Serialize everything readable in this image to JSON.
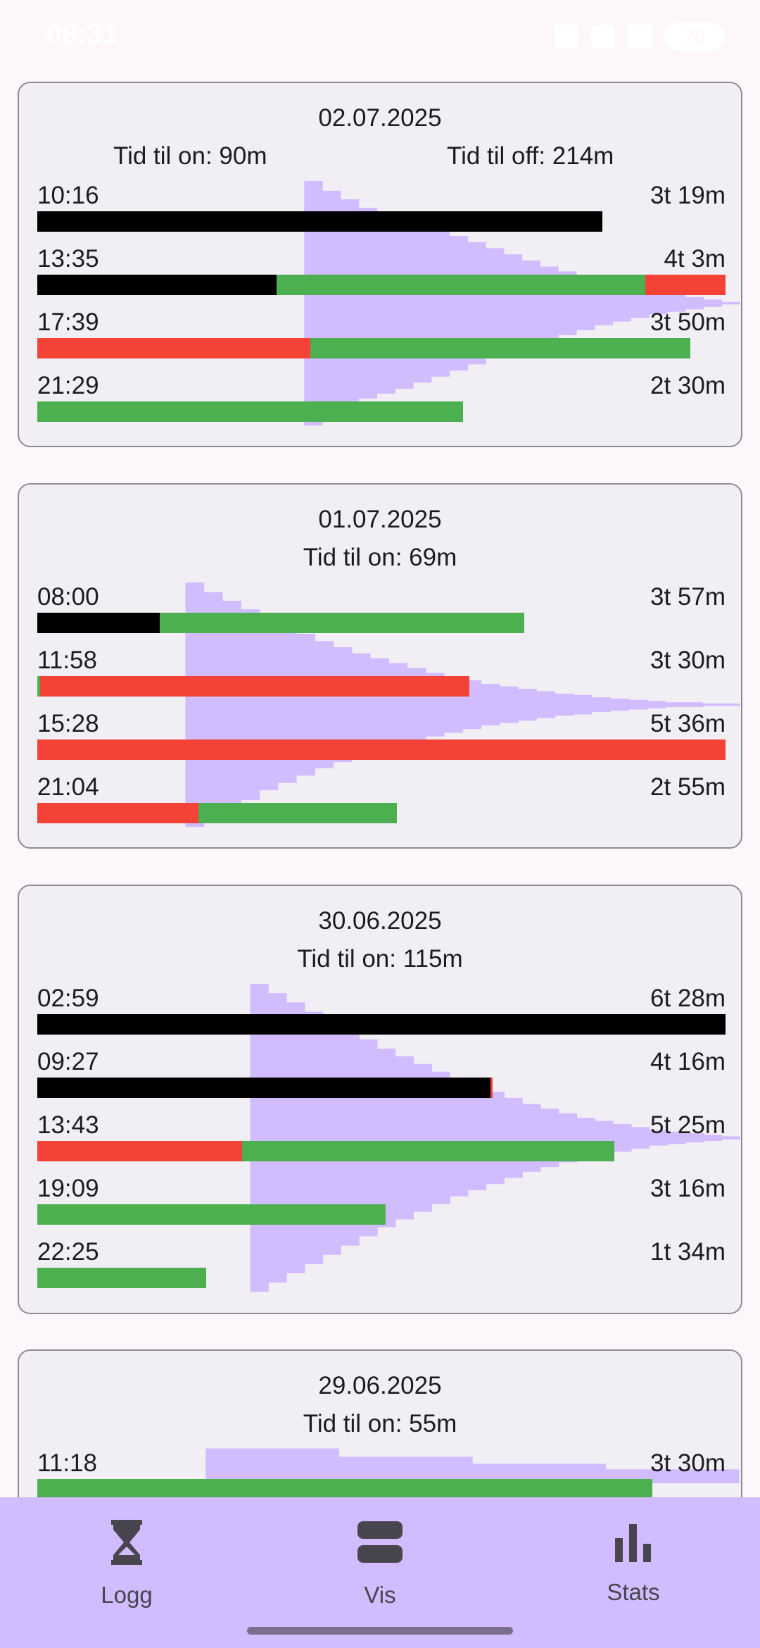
{
  "status_bar": {
    "time": "08:31",
    "battery": "76"
  },
  "colors": {
    "black": "#000000",
    "green": "#4caf50",
    "red": "#f44336",
    "histogram": "#d0bcff"
  },
  "cards": [
    {
      "date": "02.07.2025",
      "tid_on": "Tid til on: 90m",
      "tid_off": "Tid til off: 214m",
      "rows": [
        {
          "time": "10:16",
          "duration": "3t 19m",
          "segments": [
            {
              "color": "black",
              "start": 0,
              "end": 0.821
            }
          ]
        },
        {
          "time": "13:35",
          "duration": "4t 3m",
          "segments": [
            {
              "color": "black",
              "start": 0,
              "end": 0.348
            },
            {
              "color": "green",
              "start": 0.348,
              "end": 0.883
            },
            {
              "color": "red",
              "start": 0.883,
              "end": 1.0
            }
          ]
        },
        {
          "time": "17:39",
          "duration": "3t 50m",
          "segments": [
            {
              "color": "red",
              "start": 0,
              "end": 0.397
            },
            {
              "color": "green",
              "start": 0.397,
              "end": 0.949
            }
          ]
        },
        {
          "time": "21:29",
          "duration": "2t 30m",
          "segments": [
            {
              "color": "green",
              "start": 0,
              "end": 0.619
            }
          ]
        }
      ],
      "histogram": {
        "start": 0.387,
        "levels": [
          1.0,
          0.92,
          0.85,
          0.78,
          0.74,
          0.7,
          0.65,
          0.6,
          0.55,
          0.5,
          0.45,
          0.4,
          0.35,
          0.3,
          0.26,
          0.22,
          0.18,
          0.15,
          0.12,
          0.09,
          0.07,
          0.05,
          0.03,
          0.01
        ]
      }
    },
    {
      "date": "01.07.2025",
      "tid_on": "Tid til on: 69m",
      "rows": [
        {
          "time": "08:00",
          "duration": "3t 57m",
          "segments": [
            {
              "color": "black",
              "start": 0,
              "end": 0.178
            },
            {
              "color": "green",
              "start": 0.178,
              "end": 0.708
            }
          ]
        },
        {
          "time": "11:58",
          "duration": "3t 30m",
          "segments": [
            {
              "color": "green",
              "start": 0,
              "end": 0.004
            },
            {
              "color": "red",
              "start": 0.004,
              "end": 0.628
            }
          ]
        },
        {
          "time": "15:28",
          "duration": "5t 36m",
          "segments": [
            {
              "color": "red",
              "start": 0,
              "end": 1.0
            }
          ]
        },
        {
          "time": "21:04",
          "duration": "2t 55m",
          "segments": [
            {
              "color": "red",
              "start": 0,
              "end": 0.234
            },
            {
              "color": "green",
              "start": 0.234,
              "end": 0.523
            }
          ]
        }
      ],
      "histogram": {
        "start": 0.213,
        "levels": [
          1.0,
          0.92,
          0.85,
          0.78,
          0.7,
          0.64,
          0.58,
          0.52,
          0.47,
          0.42,
          0.38,
          0.34,
          0.3,
          0.26,
          0.23,
          0.2,
          0.17,
          0.15,
          0.13,
          0.11,
          0.09,
          0.08,
          0.06,
          0.05,
          0.04,
          0.03,
          0.02,
          0.02,
          0.01,
          0.01
        ]
      }
    },
    {
      "date": "30.06.2025",
      "tid_on": "Tid til on: 115m",
      "rows": [
        {
          "time": "02:59",
          "duration": "6t 28m",
          "segments": [
            {
              "color": "black",
              "start": 0,
              "end": 1.0
            }
          ]
        },
        {
          "time": "09:27",
          "duration": "4t 16m",
          "segments": [
            {
              "color": "black",
              "start": 0,
              "end": 0.658
            },
            {
              "color": "red",
              "start": 0.658,
              "end": 0.662
            }
          ]
        },
        {
          "time": "13:43",
          "duration": "5t 25m",
          "segments": [
            {
              "color": "red",
              "start": 0,
              "end": 0.298
            },
            {
              "color": "green",
              "start": 0.298,
              "end": 0.838
            }
          ]
        },
        {
          "time": "19:09",
          "duration": "3t 16m",
          "segments": [
            {
              "color": "green",
              "start": 0,
              "end": 0.506
            }
          ]
        },
        {
          "time": "22:25",
          "duration": "1t 34m",
          "segments": [
            {
              "color": "green",
              "start": 0,
              "end": 0.245
            }
          ]
        }
      ],
      "histogram": {
        "start": 0.308,
        "levels": [
          1.0,
          0.94,
          0.88,
          0.82,
          0.76,
          0.7,
          0.64,
          0.58,
          0.53,
          0.48,
          0.43,
          0.38,
          0.34,
          0.3,
          0.26,
          0.22,
          0.19,
          0.16,
          0.13,
          0.11,
          0.09,
          0.07,
          0.05,
          0.04,
          0.03,
          0.02,
          0.01
        ]
      }
    },
    {
      "date": "29.06.2025",
      "tid_on": "Tid til on: 55m",
      "rows": [
        {
          "time": "11:18",
          "duration": "3t 30m",
          "segments": [
            {
              "color": "green",
              "start": 0,
              "end": 0.894
            }
          ]
        }
      ],
      "histogram": {
        "start": 0.242,
        "levels": [
          1.0,
          0.7,
          0.45,
          0.25
        ]
      }
    }
  ],
  "nav": {
    "items": [
      {
        "label": "Logg",
        "icon": "hourglass-icon"
      },
      {
        "label": "Vis",
        "icon": "view-agenda-icon"
      },
      {
        "label": "Stats",
        "icon": "bar-chart-icon"
      }
    ]
  }
}
